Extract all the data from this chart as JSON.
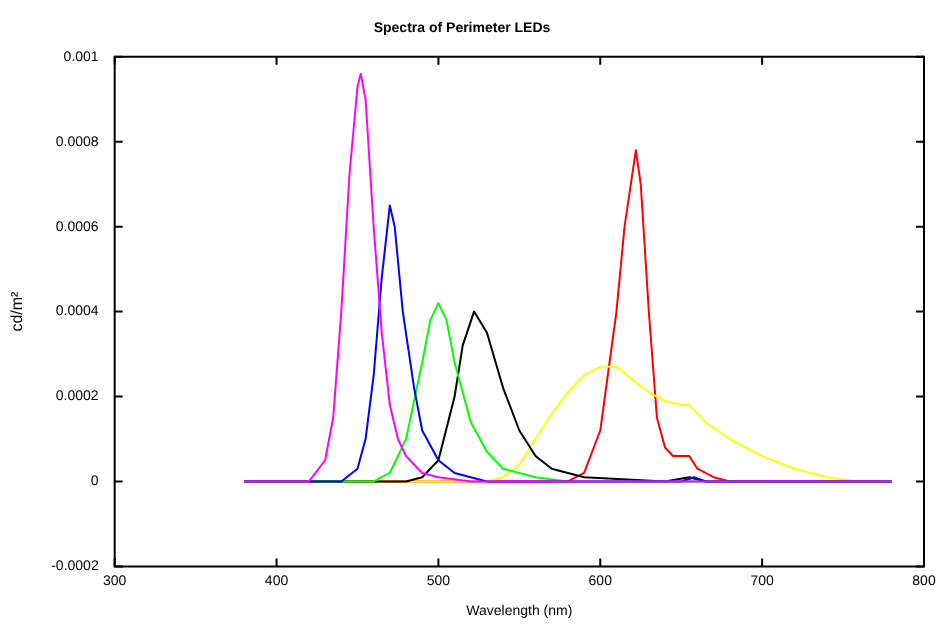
{
  "chart_data": {
    "type": "line",
    "title": "Spectra of Perimeter LEDs",
    "xlabel": "Wavelength (nm)",
    "ylabel": "cd/m²",
    "xlim": [
      300,
      800
    ],
    "xticks": [
      300,
      400,
      500,
      600,
      700,
      800
    ],
    "ylim": [
      -0.0002,
      0.001
    ],
    "yticks": [
      -0.0002,
      0,
      0.0002,
      0.0004,
      0.0006,
      0.0008,
      0.001
    ],
    "grid": false,
    "legend": false,
    "marker": "none",
    "line_style": "solid",
    "series": [
      {
        "color": "#ff00ff",
        "x": [
          380,
          420,
          430,
          435,
          440,
          445,
          450,
          452,
          455,
          460,
          465,
          470,
          475,
          480,
          490,
          500,
          520,
          780
        ],
        "values": [
          0,
          0,
          5e-05,
          0.00015,
          0.0004,
          0.00072,
          0.00093,
          0.00096,
          0.0009,
          0.0006,
          0.00035,
          0.00018,
          0.0001,
          6e-05,
          2e-05,
          1e-05,
          0,
          0
        ]
      },
      {
        "color": "#0000ff",
        "x": [
          380,
          440,
          450,
          455,
          460,
          465,
          470,
          473,
          478,
          485,
          490,
          500,
          510,
          530,
          650,
          658,
          665,
          780
        ],
        "values": [
          0,
          0,
          3e-05,
          0.0001,
          0.00025,
          0.00048,
          0.00065,
          0.0006,
          0.0004,
          0.00022,
          0.00012,
          5e-05,
          2e-05,
          0,
          0,
          1e-05,
          0,
          0
        ]
      },
      {
        "color": "#00ff00",
        "x": [
          380,
          460,
          470,
          480,
          490,
          495,
          500,
          505,
          510,
          520,
          530,
          540,
          560,
          580,
          780
        ],
        "values": [
          0,
          0,
          2e-05,
          0.0001,
          0.00028,
          0.00038,
          0.00042,
          0.00038,
          0.00028,
          0.00014,
          7e-05,
          3e-05,
          1e-05,
          0,
          0
        ]
      },
      {
        "color": "#000000",
        "x": [
          380,
          480,
          490,
          500,
          510,
          515,
          522,
          530,
          540,
          550,
          560,
          570,
          590,
          640,
          655,
          665,
          780
        ],
        "values": [
          0,
          0,
          1e-05,
          5e-05,
          0.0002,
          0.00032,
          0.0004,
          0.00035,
          0.00022,
          0.00012,
          6e-05,
          3e-05,
          1e-05,
          0,
          1e-05,
          0,
          0
        ]
      },
      {
        "color": "#ffff00",
        "x": [
          380,
          530,
          540,
          550,
          560,
          570,
          580,
          590,
          600,
          610,
          620,
          630,
          640,
          650,
          655,
          665,
          680,
          700,
          720,
          740,
          760,
          780
        ],
        "values": [
          0,
          0,
          1e-05,
          4e-05,
          0.0001,
          0.00016,
          0.00021,
          0.00025,
          0.00027,
          0.00027,
          0.00024,
          0.00021,
          0.00019,
          0.00018,
          0.00018,
          0.00014,
          0.0001,
          6e-05,
          3e-05,
          1e-05,
          0,
          0
        ]
      },
      {
        "color": "#ff0000",
        "x": [
          380,
          580,
          590,
          600,
          610,
          615,
          622,
          625,
          630,
          635,
          640,
          645,
          650,
          655,
          660,
          670,
          680,
          780
        ],
        "values": [
          0,
          0,
          2e-05,
          0.00012,
          0.0004,
          0.0006,
          0.00078,
          0.0007,
          0.0004,
          0.00015,
          8e-05,
          6e-05,
          6e-05,
          6e-05,
          3e-05,
          1e-05,
          0,
          0
        ]
      }
    ]
  }
}
